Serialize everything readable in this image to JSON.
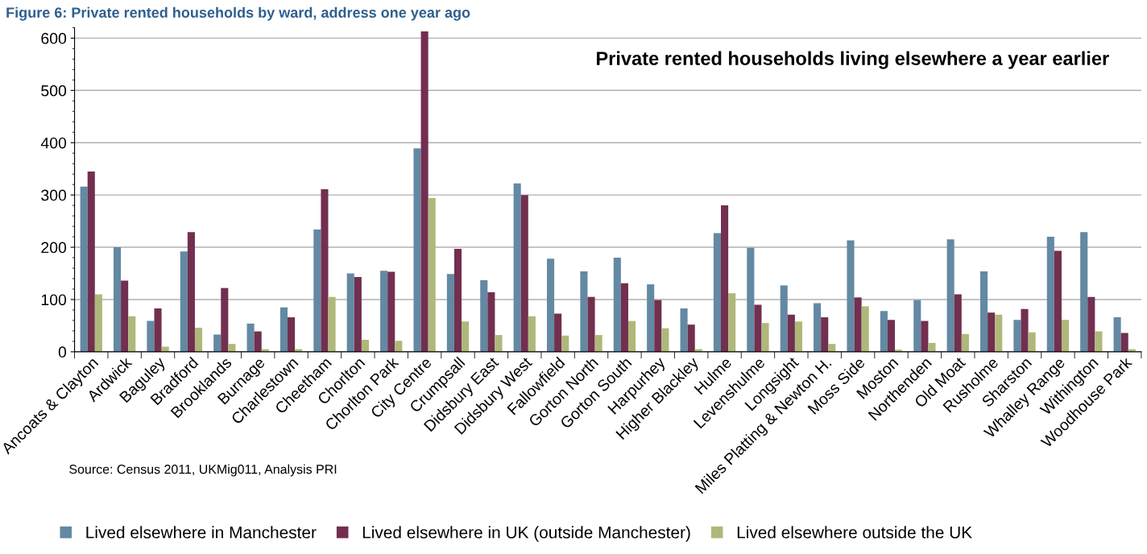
{
  "chart_data": {
    "type": "bar",
    "title": "Figure 6: Private rented households by ward, address one year ago",
    "annotations": [
      "Private rented households living elsewhere a year earlier",
      "Source: Census 2011, UKMig011, Analysis PRI"
    ],
    "categories": [
      "Ancoats & Clayton",
      "Ardwick",
      "Baguley",
      "Bradford",
      "Brooklands",
      "Burnage",
      "Charlestown",
      "Cheetham",
      "Chorlton",
      "Chorlton Park",
      "City Centre",
      "Crumpsall",
      "Didsbury East",
      "Didsbury West",
      "Fallowfield",
      "Gorton North",
      "Gorton South",
      "Harpurhey",
      "Higher Blackley",
      "Hulme",
      "Levenshulme",
      "Longsight",
      "Miles Platting & Newton H.",
      "Moss Side",
      "Moston",
      "Northenden",
      "Old Moat",
      "Rusholme",
      "Sharston",
      "Whalley Range",
      "Withington",
      "Woodhouse Park"
    ],
    "series": [
      {
        "name": "Lived elsewhere in Manchester",
        "color": "#6389a3",
        "values": [
          316,
          200,
          59,
          192,
          33,
          54,
          85,
          234,
          150,
          155,
          389,
          149,
          137,
          322,
          178,
          154,
          180,
          129,
          83,
          227,
          199,
          127,
          93,
          213,
          78,
          99,
          215,
          154,
          61,
          220,
          229,
          66
        ]
      },
      {
        "name": "Lived elsewhere in UK (outside Manchester)",
        "color": "#722f50",
        "values": [
          345,
          136,
          83,
          229,
          122,
          39,
          66,
          311,
          143,
          153,
          613,
          197,
          114,
          300,
          73,
          105,
          131,
          99,
          52,
          280,
          90,
          71,
          66,
          104,
          61,
          59,
          110,
          75,
          82,
          193,
          105,
          36
        ]
      },
      {
        "name": "Lived elsewhere outside the UK",
        "color": "#afb87a",
        "values": [
          110,
          68,
          10,
          46,
          15,
          5,
          5,
          105,
          23,
          21,
          294,
          58,
          32,
          68,
          31,
          32,
          59,
          45,
          5,
          112,
          55,
          58,
          15,
          87,
          4,
          17,
          34,
          71,
          37,
          61,
          39,
          5
        ]
      }
    ],
    "ylim": [
      0,
      620
    ],
    "yticks": [
      0,
      100,
      200,
      300,
      400,
      500,
      600
    ],
    "grid": "y",
    "legend": "bottom"
  }
}
